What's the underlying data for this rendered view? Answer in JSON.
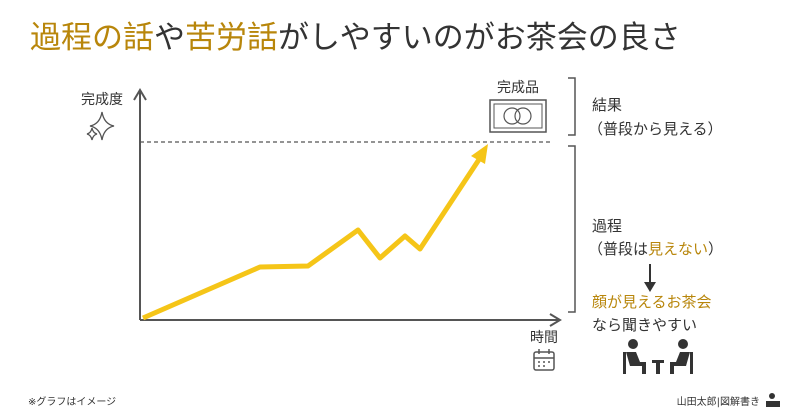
{
  "title": {
    "parts": [
      "過程の話",
      "や",
      "苦労話",
      "がしやすいのがお茶会の良さ"
    ]
  },
  "axes": {
    "y_label": "完成度",
    "x_label": "時間"
  },
  "product_label": "完成品",
  "result": {
    "label": "結果",
    "note": "（普段から見える）"
  },
  "process": {
    "label": "過程",
    "note_parts": [
      "（普段は",
      "見えない",
      "）"
    ]
  },
  "tea": {
    "line1": "顔が見えるお茶会",
    "line2": "なら聞きやすい"
  },
  "footnote": "※グラフはイメージ",
  "credit": "山田太郎|図解書き"
}
